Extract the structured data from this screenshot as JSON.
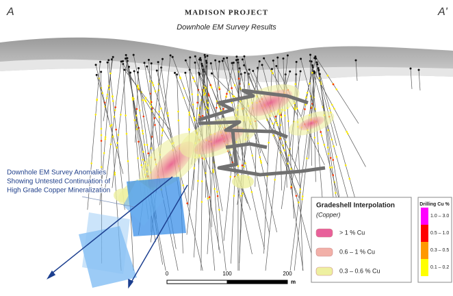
{
  "header": {
    "left_marker": "A",
    "right_marker": "A'",
    "title": "MADISON PROJECT",
    "subtitle": "Downhole EM Survey Results"
  },
  "annotation": {
    "lines": [
      "Downhole EM Survey Anomalies",
      "Showing Untested Continuation of",
      "High Grade Copper Mineralization"
    ]
  },
  "gradeshell_legend": {
    "title": "Gradeshell Interpolation",
    "subtitle": "(Copper)",
    "items": [
      {
        "label": "> 1 % Cu",
        "color": "#e8609a"
      },
      {
        "label": "0.6 – 1 % Cu",
        "color": "#f2b0a8"
      },
      {
        "label": "0.3 – 0.6 % Cu",
        "color": "#eef0a0"
      }
    ]
  },
  "drilling_legend": {
    "title": "Drilling Cu %",
    "items": [
      {
        "label": "1.0 – 3.0",
        "color": "#ff00ff"
      },
      {
        "label": "0.5 – 1.0",
        "color": "#ff0000"
      },
      {
        "label": "0.3 – 0.5",
        "color": "#ff9900"
      },
      {
        "label": "0.1 – 0.2",
        "color": "#ffff00"
      }
    ]
  },
  "scale_bar": {
    "labels": [
      "0",
      "100",
      "200"
    ],
    "unit": "m"
  }
}
